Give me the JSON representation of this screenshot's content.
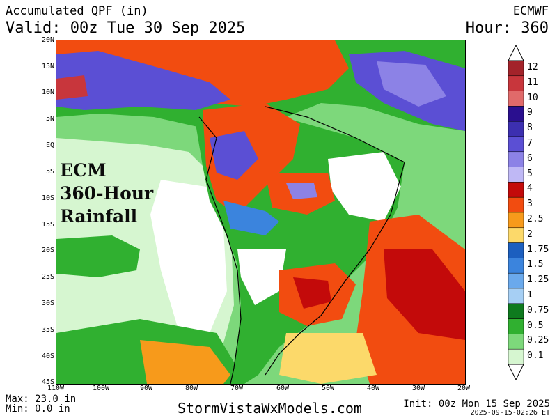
{
  "header": {
    "title": "Accumulated QPF (in)",
    "valid": "Valid: 00z Tue 30 Sep 2025",
    "model": "ECMWF",
    "hour": "Hour: 360"
  },
  "overlay": {
    "lines": [
      "ECM",
      "360-Hour",
      "Rainfall"
    ]
  },
  "lat_labels": [
    "20N",
    "15N",
    "10N",
    "5N",
    "EQ",
    "5S",
    "10S",
    "15S",
    "20S",
    "25S",
    "30S",
    "35S",
    "40S",
    "45S"
  ],
  "lon_labels": [
    "110W",
    "100W",
    "90W",
    "80W",
    "70W",
    "60W",
    "50W",
    "40W",
    "30W",
    "20W"
  ],
  "colorbar": {
    "labels": [
      "12",
      "11",
      "10",
      "9",
      "8",
      "7",
      "6",
      "5",
      "4",
      "3",
      "2.5",
      "2",
      "1.75",
      "1.5",
      "1.25",
      "1",
      "0.75",
      "0.5",
      "0.25",
      "0.1"
    ],
    "colors": [
      "#a3232a",
      "#c8363c",
      "#e06a6a",
      "#2a0f8f",
      "#3c2fb0",
      "#5b4fd4",
      "#8c82e6",
      "#bfb8f5",
      "#c30a0a",
      "#f24c10",
      "#f79a1b",
      "#fcd96a",
      "#1c5fbf",
      "#3b84dd",
      "#6aa9ec",
      "#a6cff4",
      "#0e7a1e",
      "#30b030",
      "#7dd87b",
      "#d6f6d0"
    ]
  },
  "footer": {
    "max": "Max: 23.0 in",
    "min": "Min: 0.0 in",
    "site": "StormVistaWxModels.com",
    "init": "Init: 00z Mon 15 Sep 2025",
    "stamp": "2025-09-15-02:26 ET"
  }
}
